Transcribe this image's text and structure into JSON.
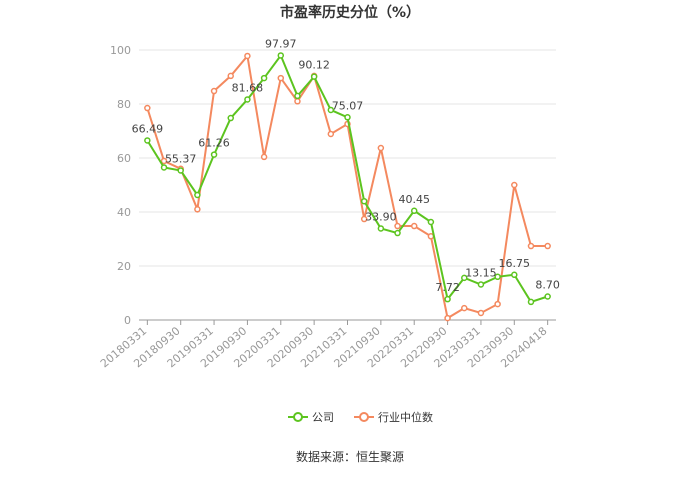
{
  "chart_data": {
    "type": "line",
    "title": "市盈率历史分位（%）",
    "categories": [
      "20180331",
      null,
      "20180930",
      null,
      "20190331",
      null,
      "20190930",
      null,
      "20200331",
      null,
      "20200930",
      null,
      "20210331",
      null,
      "20210930",
      null,
      "20220331",
      null,
      "20220930",
      null,
      "20230331",
      null,
      "20230930",
      null,
      "20240418"
    ],
    "series": [
      {
        "name": "公司",
        "color": "#5cc41f",
        "values": [
          66.49,
          56.5,
          55.37,
          46.3,
          61.26,
          74.8,
          81.68,
          89.6,
          97.97,
          83,
          90.12,
          77.8,
          75.07,
          44,
          33.9,
          32.2,
          40.45,
          36.3,
          7.72,
          15.6,
          13.15,
          16,
          16.75,
          6.7,
          8.7
        ],
        "value_labels": [
          "66.49",
          null,
          "55.37",
          null,
          "61.26",
          null,
          "81.68",
          null,
          "97.97",
          null,
          "90.12",
          null,
          "75.07",
          null,
          "33.90",
          null,
          "40.45",
          null,
          "7.72",
          null,
          "13.15",
          null,
          "16.75",
          null,
          "8.70"
        ]
      },
      {
        "name": "行业中位数",
        "color": "#f4895f",
        "values": [
          78.5,
          58.9,
          56,
          41,
          84.8,
          90.4,
          97.8,
          60.4,
          89.6,
          81,
          90.4,
          68.9,
          72.6,
          37.4,
          63.7,
          34.8,
          34.8,
          31,
          0.7,
          4.4,
          2.6,
          5.9,
          50,
          27.4,
          27.4
        ]
      }
    ],
    "ylim": [
      0,
      100
    ],
    "yticks": [
      0,
      20,
      40,
      60,
      80,
      100
    ],
    "grid": true,
    "legend": "bottom",
    "source": "数据来源：恒生聚源"
  }
}
